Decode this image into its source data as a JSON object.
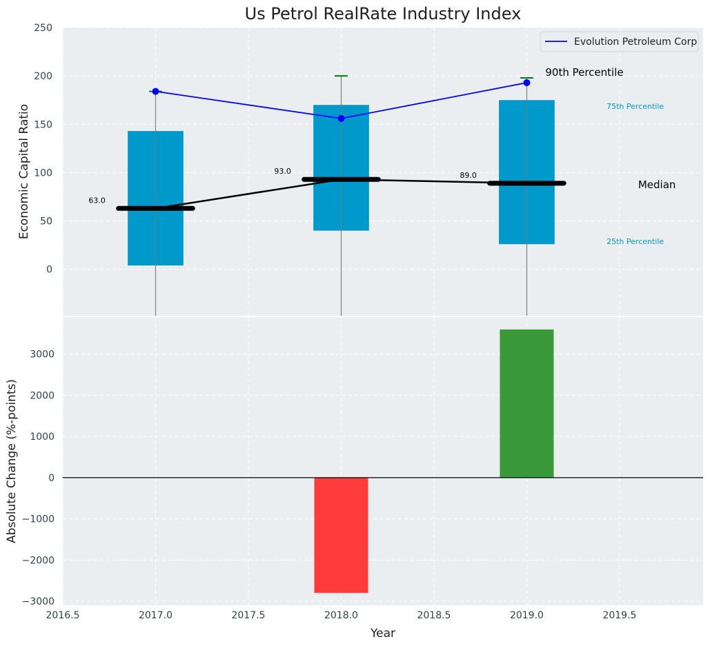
{
  "chart_data": [
    {
      "type": "box",
      "title": "Us Petrol RealRate Industry Index",
      "ylabel": "Economic Capital Ratio",
      "xlim": [
        2016.5,
        2019.95
      ],
      "ylim": [
        -48,
        250
      ],
      "yticks": [
        0,
        50,
        100,
        150,
        200,
        250
      ],
      "categories": [
        2017,
        2018,
        2019
      ],
      "p25": [
        4,
        40,
        26
      ],
      "p75": [
        143,
        170,
        175
      ],
      "median": [
        63,
        93,
        89
      ],
      "median_labels": [
        "63.0",
        "93.0",
        "89.0"
      ],
      "p90": [
        184,
        200,
        198
      ],
      "series": [
        {
          "name": "Evolution Petroleum Corp",
          "values": [
            184,
            156,
            193
          ],
          "color": "#0000ff"
        }
      ],
      "box_color": "#0099cc",
      "p90_color": "#008000",
      "annotations": {
        "p90": "90th Percentile",
        "p75": "75th Percentile",
        "median": "Median",
        "p25": "25th Percentile"
      },
      "legend": "top-right"
    },
    {
      "type": "bar",
      "ylabel": "Absolute Change (%-points)",
      "xlabel": "Year",
      "ylim": [
        -3100,
        3900
      ],
      "yticks": [
        -3000,
        -2000,
        -1000,
        0,
        1000,
        2000,
        3000
      ],
      "ytick_labels": [
        "−3000",
        "−2000",
        "−1000",
        "0",
        "1000",
        "2000",
        "3000"
      ],
      "xticks": [
        2016.5,
        2017.0,
        2017.5,
        2018.0,
        2018.5,
        2019.0,
        2019.5
      ],
      "xtick_labels": [
        "2016.5",
        "2017.0",
        "2017.5",
        "2018.0",
        "2018.5",
        "2019.0",
        "2019.5"
      ],
      "categories": [
        2018,
        2019
      ],
      "values": [
        -2800,
        3600
      ],
      "colors": [
        "#ff3b3b",
        "#3a9a3a"
      ]
    }
  ]
}
